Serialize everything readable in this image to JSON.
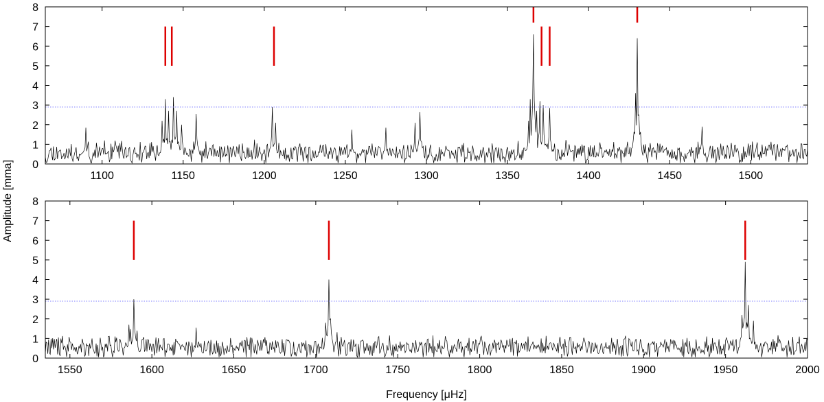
{
  "chart_data": [
    {
      "type": "line",
      "panel": "top",
      "xlabel": "",
      "ylabel": "Amplitude [mma]",
      "xlim": [
        1065,
        1535
      ],
      "ylim": [
        0,
        8
      ],
      "xticks": [
        1100,
        1150,
        1200,
        1250,
        1300,
        1350,
        1400,
        1450,
        1500
      ],
      "yticks": [
        0,
        1,
        2,
        3,
        4,
        5,
        6,
        7,
        8
      ],
      "grid": false,
      "threshold": {
        "y": 2.9,
        "color": "#8080ff",
        "style": "dotted"
      },
      "series_color": "#000000",
      "noise": {
        "base": 0.55,
        "spread": 0.45,
        "seed": 11
      },
      "peaks": [
        {
          "x": 1090,
          "y": 1.85
        },
        {
          "x": 1137,
          "y": 2.2
        },
        {
          "x": 1139,
          "y": 3.3
        },
        {
          "x": 1141,
          "y": 2.7
        },
        {
          "x": 1144,
          "y": 3.4
        },
        {
          "x": 1146,
          "y": 2.7
        },
        {
          "x": 1149,
          "y": 2.0
        },
        {
          "x": 1158,
          "y": 2.55
        },
        {
          "x": 1205,
          "y": 2.9
        },
        {
          "x": 1207,
          "y": 2.1
        },
        {
          "x": 1254,
          "y": 1.75
        },
        {
          "x": 1275,
          "y": 1.85
        },
        {
          "x": 1293,
          "y": 2.1
        },
        {
          "x": 1296,
          "y": 2.65
        },
        {
          "x": 1363,
          "y": 2.2
        },
        {
          "x": 1364,
          "y": 3.3
        },
        {
          "x": 1366,
          "y": 6.6
        },
        {
          "x": 1368,
          "y": 2.7
        },
        {
          "x": 1370,
          "y": 3.2
        },
        {
          "x": 1372,
          "y": 3.0
        },
        {
          "x": 1376,
          "y": 2.85
        },
        {
          "x": 1429,
          "y": 3.6
        },
        {
          "x": 1430,
          "y": 6.4
        },
        {
          "x": 1431,
          "y": 2.5
        },
        {
          "x": 1470,
          "y": 1.9
        }
      ],
      "markers": [
        {
          "x": 1139,
          "y0": 5.0,
          "y1": 7.0
        },
        {
          "x": 1143,
          "y0": 5.0,
          "y1": 7.0
        },
        {
          "x": 1206,
          "y0": 5.0,
          "y1": 7.0
        },
        {
          "x": 1366,
          "y0": 7.2,
          "y1": 8.0
        },
        {
          "x": 1371,
          "y0": 5.0,
          "y1": 7.0
        },
        {
          "x": 1376,
          "y0": 5.0,
          "y1": 7.0
        },
        {
          "x": 1430,
          "y0": 7.2,
          "y1": 8.0
        }
      ]
    },
    {
      "type": "line",
      "panel": "bottom",
      "xlabel": "Frequency [μHz]",
      "ylabel": "Amplitude [mma]",
      "xlim": [
        1535,
        2000
      ],
      "ylim": [
        0,
        8
      ],
      "xticks": [
        1550,
        1600,
        1650,
        1700,
        1750,
        1800,
        1850,
        1900,
        1950,
        2000
      ],
      "yticks": [
        0,
        1,
        2,
        3,
        4,
        5,
        6,
        7,
        8
      ],
      "grid": false,
      "threshold": {
        "y": 2.9,
        "color": "#8080ff",
        "style": "dotted"
      },
      "series_color": "#000000",
      "noise": {
        "base": 0.55,
        "spread": 0.45,
        "seed": 29
      },
      "peaks": [
        {
          "x": 1586,
          "y": 1.7
        },
        {
          "x": 1589,
          "y": 3.0
        },
        {
          "x": 1591,
          "y": 1.4
        },
        {
          "x": 1627,
          "y": 1.55
        },
        {
          "x": 1706,
          "y": 1.8
        },
        {
          "x": 1708,
          "y": 4.0
        },
        {
          "x": 1709,
          "y": 2.0
        },
        {
          "x": 1960,
          "y": 2.2
        },
        {
          "x": 1962,
          "y": 4.9
        },
        {
          "x": 1964,
          "y": 2.7
        },
        {
          "x": 1967,
          "y": 1.9
        }
      ],
      "markers": [
        {
          "x": 1589,
          "y0": 5.0,
          "y1": 7.0
        },
        {
          "x": 1708,
          "y0": 5.0,
          "y1": 7.0
        },
        {
          "x": 1962,
          "y0": 5.0,
          "y1": 7.0
        }
      ]
    }
  ],
  "colors": {
    "marker": "#dd0000",
    "axes": "#000000"
  }
}
